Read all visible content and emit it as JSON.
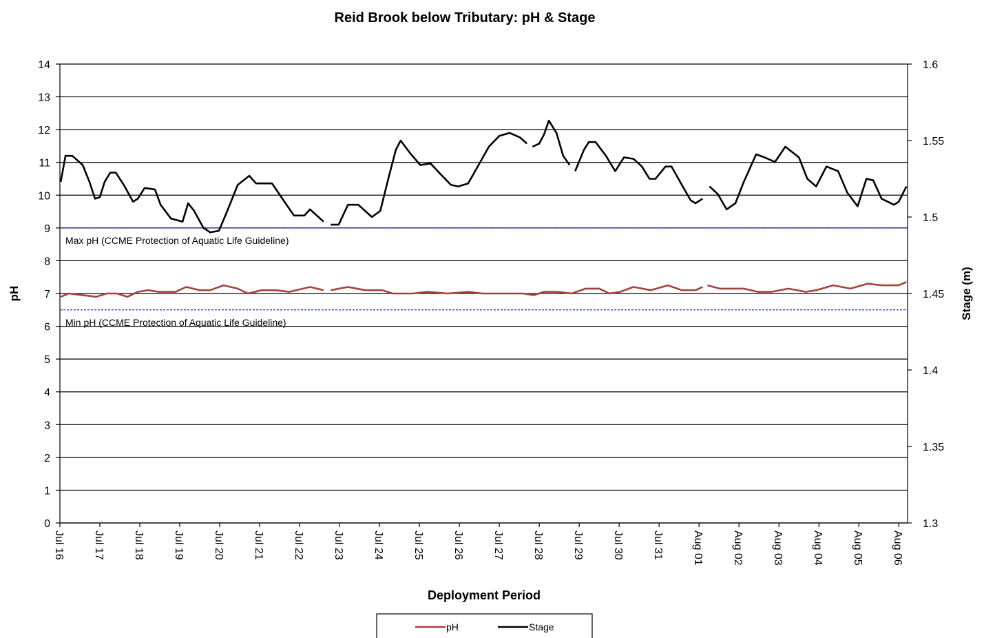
{
  "chart_data": {
    "type": "line",
    "title": "Reid Brook below Tributary: pH & Stage",
    "x_label": "Deployment Period",
    "y_label": "pH",
    "y2_label": "Stage (m)",
    "xlim": [
      0,
      21.22
    ],
    "xticks": [
      {
        "value": 0,
        "label": "Jul 16"
      },
      {
        "value": 1,
        "label": "Jul 17"
      },
      {
        "value": 2,
        "label": "Jul 18"
      },
      {
        "value": 3,
        "label": "Jul 19"
      },
      {
        "value": 4,
        "label": "Jul 20"
      },
      {
        "value": 5,
        "label": "Jul 21"
      },
      {
        "value": 6,
        "label": "Jul 22"
      },
      {
        "value": 7,
        "label": "Jul 23"
      },
      {
        "value": 8,
        "label": "Jul 24"
      },
      {
        "value": 9,
        "label": "Jul 25"
      },
      {
        "value": 10,
        "label": "Jul 26"
      },
      {
        "value": 11,
        "label": "Jul 27"
      },
      {
        "value": 12,
        "label": "Jul 28"
      },
      {
        "value": 13,
        "label": "Jul 29"
      },
      {
        "value": 14,
        "label": "Jul 30"
      },
      {
        "value": 15,
        "label": "Jul 31"
      },
      {
        "value": 16,
        "label": "Aug 01"
      },
      {
        "value": 17,
        "label": "Aug 02"
      },
      {
        "value": 18,
        "label": "Aug 03"
      },
      {
        "value": 19,
        "label": "Aug 04"
      },
      {
        "value": 20,
        "label": "Aug 05"
      },
      {
        "value": 21,
        "label": "Aug 06"
      }
    ],
    "ylim": [
      0,
      14
    ],
    "yticks": [
      0,
      1,
      2,
      3,
      4,
      5,
      6,
      7,
      8,
      9,
      10,
      11,
      12,
      13,
      14
    ],
    "y2lim": [
      1.3,
      1.6
    ],
    "y2ticks": [
      1.3,
      1.35,
      1.4,
      1.45,
      1.5,
      1.55,
      1.6
    ],
    "grid": true,
    "reference_lines": [
      {
        "value": 9,
        "label": "Max pH  (CCME  Protection of Aquatic Life Guideline)",
        "color": "#1f2fa8"
      },
      {
        "value": 6.5,
        "label": "Min pH  (CCME  Protection of Aquatic Life Guideline)",
        "color": "#1f2fa8"
      }
    ],
    "series": [
      {
        "name": "pH",
        "color": "#a4413d",
        "x": [
          0.02,
          0.22,
          0.57,
          0.91,
          1.17,
          1.43,
          1.69,
          1.95,
          2.21,
          2.47,
          2.9,
          3.16,
          3.5,
          3.76,
          4.1,
          4.45,
          4.71,
          5.05,
          5.4,
          5.74,
          6.26,
          6.6,
          6.7,
          6.78,
          7.21,
          7.64,
          8.07,
          8.33,
          8.84,
          9.19,
          9.71,
          10.22,
          10.57,
          11.09,
          11.6,
          11.86,
          12.12,
          12.47,
          12.81,
          13.16,
          13.5,
          13.76,
          14.02,
          14.36,
          14.79,
          15.22,
          15.57,
          15.91,
          16.09,
          16.15,
          16.21,
          16.52,
          17.12,
          17.47,
          17.81,
          18.24,
          18.67,
          18.93,
          19.36,
          19.79,
          20.22,
          20.57,
          21.0,
          21.19
        ],
        "values": [
          6.9,
          7.0,
          6.95,
          6.9,
          7.0,
          7.0,
          6.9,
          7.05,
          7.1,
          7.05,
          7.05,
          7.2,
          7.1,
          7.1,
          7.25,
          7.15,
          7.0,
          7.1,
          7.1,
          7.05,
          7.2,
          7.1,
          null,
          7.1,
          7.2,
          7.1,
          7.1,
          7.0,
          7.0,
          7.05,
          7.0,
          7.05,
          7.0,
          7.0,
          7.0,
          6.95,
          7.05,
          7.05,
          7.0,
          7.15,
          7.15,
          7.0,
          7.05,
          7.2,
          7.1,
          7.25,
          7.1,
          7.1,
          7.2,
          null,
          7.25,
          7.15,
          7.15,
          7.05,
          7.05,
          7.15,
          7.05,
          7.1,
          7.25,
          7.15,
          7.3,
          7.25,
          7.25,
          7.35
        ]
      },
      {
        "name": "Stage",
        "color": "#000000",
        "axis": "y2",
        "x": [
          0.02,
          0.14,
          0.31,
          0.57,
          0.74,
          0.88,
          1.0,
          1.12,
          1.26,
          1.4,
          1.6,
          1.83,
          1.95,
          2.12,
          2.38,
          2.52,
          2.78,
          3.07,
          3.21,
          3.36,
          3.59,
          3.76,
          3.98,
          4.19,
          4.45,
          4.74,
          4.91,
          5.31,
          5.57,
          5.86,
          6.12,
          6.26,
          6.6,
          6.7,
          6.78,
          6.98,
          7.21,
          7.47,
          7.81,
          8.02,
          8.24,
          8.41,
          8.53,
          8.76,
          9.02,
          9.28,
          9.53,
          9.79,
          9.97,
          10.22,
          10.48,
          10.74,
          11.0,
          11.26,
          11.52,
          11.69,
          11.76,
          11.83,
          12.0,
          12.12,
          12.24,
          12.43,
          12.6,
          12.76,
          12.83,
          12.9,
          13.12,
          13.24,
          13.41,
          13.67,
          13.9,
          14.12,
          14.36,
          14.57,
          14.76,
          14.91,
          15.16,
          15.31,
          15.57,
          15.79,
          15.91,
          16.09,
          16.17,
          16.26,
          16.47,
          16.69,
          16.91,
          17.12,
          17.43,
          17.64,
          17.9,
          18.16,
          18.5,
          18.71,
          18.93,
          19.19,
          19.48,
          19.71,
          19.97,
          20.19,
          20.36,
          20.57,
          20.88,
          21.0,
          21.19
        ],
        "values": [
          1.523,
          1.54,
          1.54,
          1.534,
          1.523,
          1.512,
          1.513,
          1.523,
          1.529,
          1.529,
          1.521,
          1.51,
          1.512,
          1.519,
          1.518,
          1.508,
          1.499,
          1.497,
          1.509,
          1.504,
          1.493,
          1.49,
          1.491,
          1.504,
          1.521,
          1.527,
          1.522,
          1.522,
          1.512,
          1.501,
          1.501,
          1.505,
          1.497,
          null,
          1.495,
          1.495,
          1.508,
          1.508,
          1.5,
          1.504,
          1.527,
          1.544,
          1.55,
          1.542,
          1.534,
          1.535,
          1.528,
          1.521,
          1.52,
          1.522,
          1.534,
          1.546,
          1.553,
          1.555,
          1.552,
          1.548,
          null,
          1.546,
          1.548,
          1.554,
          1.563,
          1.555,
          1.54,
          1.534,
          null,
          1.53,
          1.544,
          1.549,
          1.549,
          1.54,
          1.53,
          1.539,
          1.538,
          1.533,
          1.525,
          1.525,
          1.533,
          1.533,
          1.521,
          1.511,
          1.509,
          1.512,
          null,
          1.52,
          1.515,
          1.505,
          1.509,
          1.523,
          1.541,
          1.539,
          1.536,
          1.546,
          1.539,
          1.525,
          1.52,
          1.533,
          1.53,
          1.516,
          1.507,
          1.525,
          1.524,
          1.512,
          1.508,
          1.51,
          1.52
        ]
      }
    ]
  }
}
